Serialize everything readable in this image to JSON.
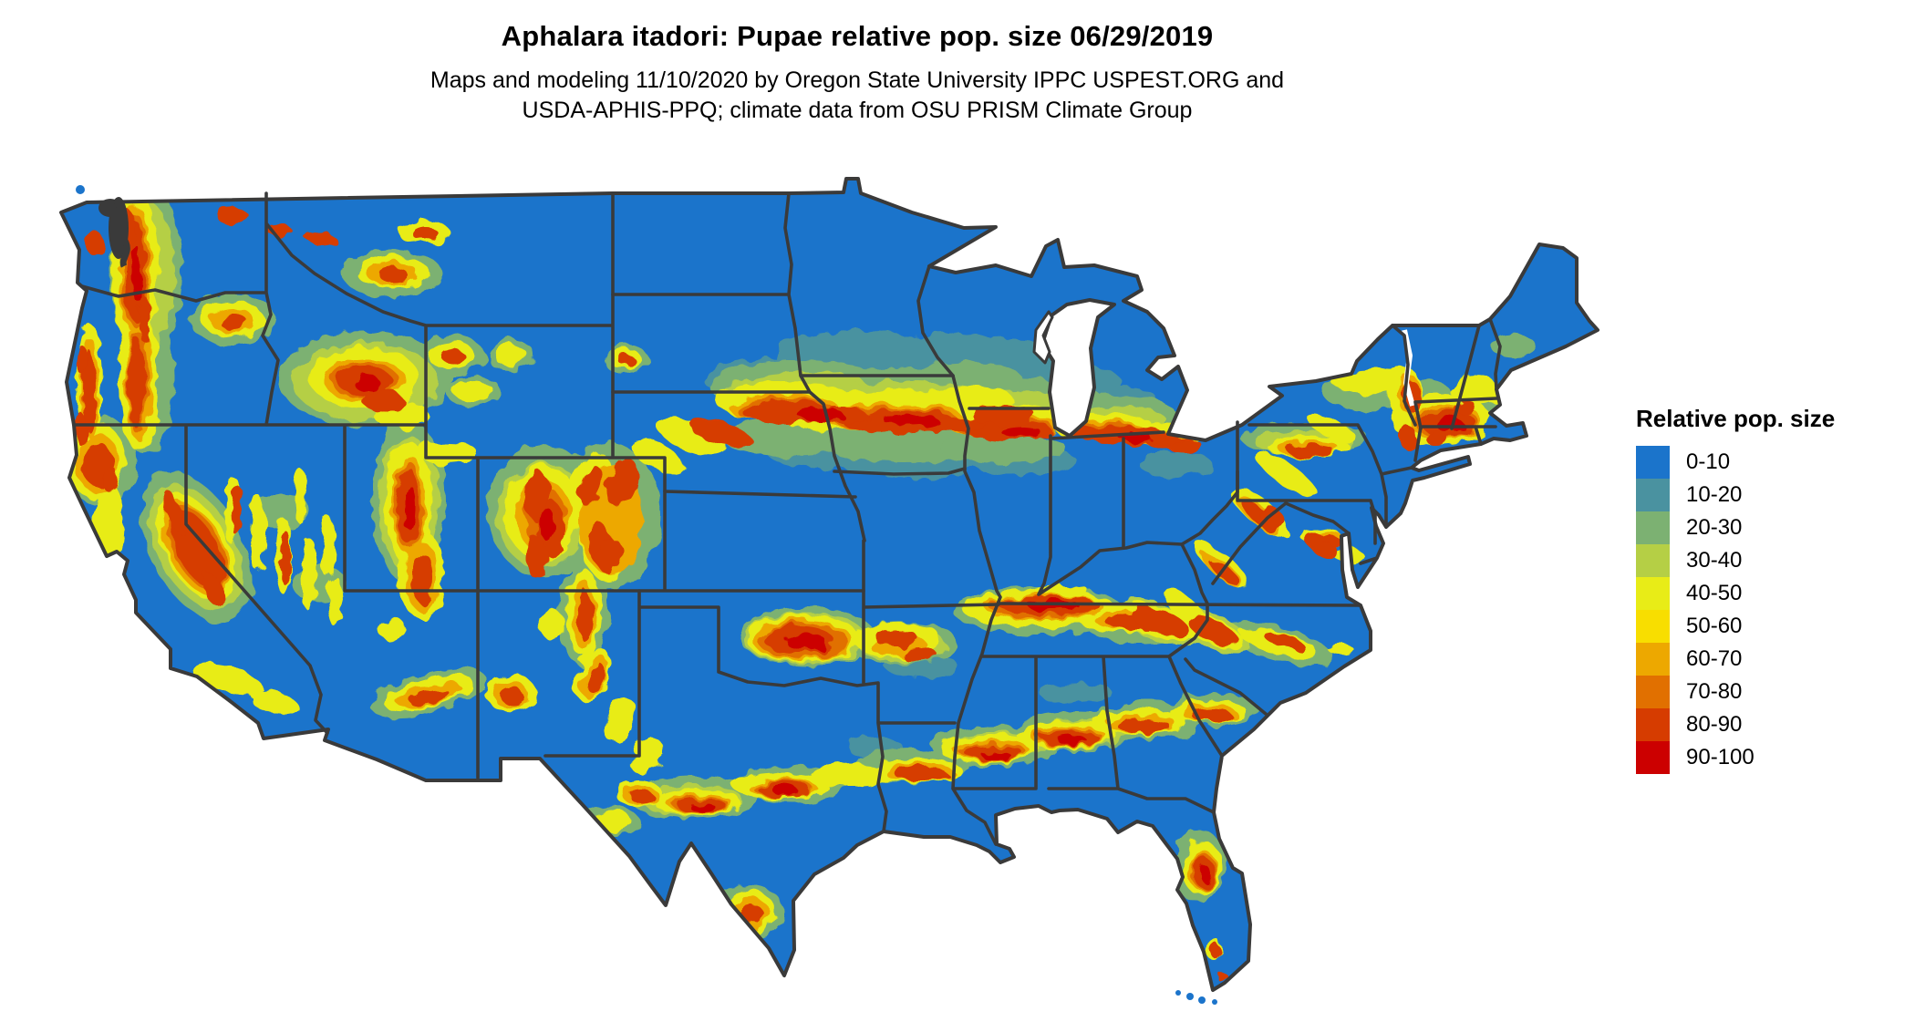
{
  "header": {
    "title": "Aphalara itadori: Pupae relative pop. size 06/29/2019",
    "subtitle_line1": "Maps and modeling 11/10/2020 by Oregon State University IPPC USPEST.ORG and",
    "subtitle_line2": "USDA-APHIS-PPQ; climate data from OSU PRISM Climate Group"
  },
  "legend": {
    "title": "Relative pop. size",
    "items": [
      {
        "label": "0-10",
        "color": "#1b74cb"
      },
      {
        "label": "10-20",
        "color": "#4a92a0"
      },
      {
        "label": "20-30",
        "color": "#7cb172"
      },
      {
        "label": "30-40",
        "color": "#b5cf45"
      },
      {
        "label": "40-50",
        "color": "#e8ec17"
      },
      {
        "label": "50-60",
        "color": "#f8de00"
      },
      {
        "label": "60-70",
        "color": "#eda800"
      },
      {
        "label": "70-80",
        "color": "#e17000"
      },
      {
        "label": "80-90",
        "color": "#d63c00"
      },
      {
        "label": "90-100",
        "color": "#cc0000"
      }
    ]
  },
  "map": {
    "base_color": "#1b74cb",
    "border_color": "#3a3a3a",
    "water_color": "#ffffff"
  }
}
